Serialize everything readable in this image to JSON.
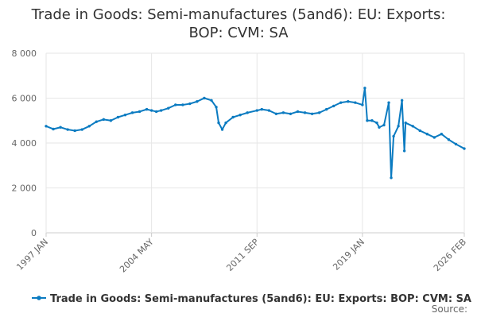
{
  "chart_data": {
    "type": "line",
    "title_lines": [
      "Trade in Goods: Semi-manufactures (5and6): EU: Exports:",
      "BOP: CVM: SA"
    ],
    "xlabel": "",
    "ylabel": "",
    "x_range": [
      "1997-01",
      "2026-02"
    ],
    "x_ticks": [
      {
        "label": "1997 JAN",
        "date": "1997-01"
      },
      {
        "label": "2004 MAY",
        "date": "2004-05"
      },
      {
        "label": "2011 SEP",
        "date": "2011-09"
      },
      {
        "label": "2019 JAN",
        "date": "2019-01"
      },
      {
        "label": "2026 FEB",
        "date": "2026-02"
      }
    ],
    "ylim": [
      0,
      8000
    ],
    "y_ticks": [
      {
        "label": "0",
        "value": 0
      },
      {
        "label": "2 000",
        "value": 2000
      },
      {
        "label": "4 000",
        "value": 4000
      },
      {
        "label": "6 000",
        "value": 6000
      },
      {
        "label": "8 000",
        "value": 8000
      }
    ],
    "grid": true,
    "legend_position": "bottom",
    "series": [
      {
        "name": "Trade in Goods: Semi-manufactures (5and6): EU: Exports: BOP: CVM: SA",
        "color": "#0b7bc1",
        "points": [
          [
            "1997-01",
            4750
          ],
          [
            "1997-07",
            4620
          ],
          [
            "1998-01",
            4700
          ],
          [
            "1998-07",
            4600
          ],
          [
            "1999-01",
            4550
          ],
          [
            "1999-07",
            4600
          ],
          [
            "2000-01",
            4750
          ],
          [
            "2000-07",
            4950
          ],
          [
            "2001-01",
            5050
          ],
          [
            "2001-07",
            5000
          ],
          [
            "2002-01",
            5150
          ],
          [
            "2002-07",
            5250
          ],
          [
            "2003-01",
            5350
          ],
          [
            "2003-07",
            5400
          ],
          [
            "2004-01",
            5500
          ],
          [
            "2004-05",
            5450
          ],
          [
            "2004-09",
            5400
          ],
          [
            "2005-01",
            5450
          ],
          [
            "2005-07",
            5550
          ],
          [
            "2006-01",
            5700
          ],
          [
            "2006-07",
            5700
          ],
          [
            "2007-01",
            5750
          ],
          [
            "2007-07",
            5850
          ],
          [
            "2008-01",
            6000
          ],
          [
            "2008-07",
            5900
          ],
          [
            "2008-11",
            5600
          ],
          [
            "2009-01",
            4900
          ],
          [
            "2009-04",
            4600
          ],
          [
            "2009-07",
            4900
          ],
          [
            "2010-01",
            5150
          ],
          [
            "2010-07",
            5250
          ],
          [
            "2011-01",
            5350
          ],
          [
            "2011-09",
            5450
          ],
          [
            "2012-01",
            5500
          ],
          [
            "2012-07",
            5450
          ],
          [
            "2013-01",
            5300
          ],
          [
            "2013-07",
            5350
          ],
          [
            "2014-01",
            5300
          ],
          [
            "2014-07",
            5400
          ],
          [
            "2015-01",
            5350
          ],
          [
            "2015-07",
            5300
          ],
          [
            "2016-01",
            5350
          ],
          [
            "2016-07",
            5500
          ],
          [
            "2017-01",
            5650
          ],
          [
            "2017-07",
            5800
          ],
          [
            "2018-01",
            5850
          ],
          [
            "2018-07",
            5800
          ],
          [
            "2019-01",
            5700
          ],
          [
            "2019-03",
            6450
          ],
          [
            "2019-05",
            5000
          ],
          [
            "2019-09",
            5000
          ],
          [
            "2020-01",
            4900
          ],
          [
            "2020-03",
            4700
          ],
          [
            "2020-07",
            4800
          ],
          [
            "2020-11",
            5800
          ],
          [
            "2021-01",
            2450
          ],
          [
            "2021-03",
            4300
          ],
          [
            "2021-07",
            4750
          ],
          [
            "2021-10",
            5900
          ],
          [
            "2021-12",
            3650
          ],
          [
            "2022-01",
            4900
          ],
          [
            "2022-07",
            4750
          ],
          [
            "2023-01",
            4550
          ],
          [
            "2023-07",
            4400
          ],
          [
            "2024-01",
            4250
          ],
          [
            "2024-07",
            4400
          ],
          [
            "2025-01",
            4150
          ],
          [
            "2025-07",
            3950
          ],
          [
            "2026-02",
            3750
          ]
        ]
      }
    ],
    "source_label": "Source:"
  }
}
